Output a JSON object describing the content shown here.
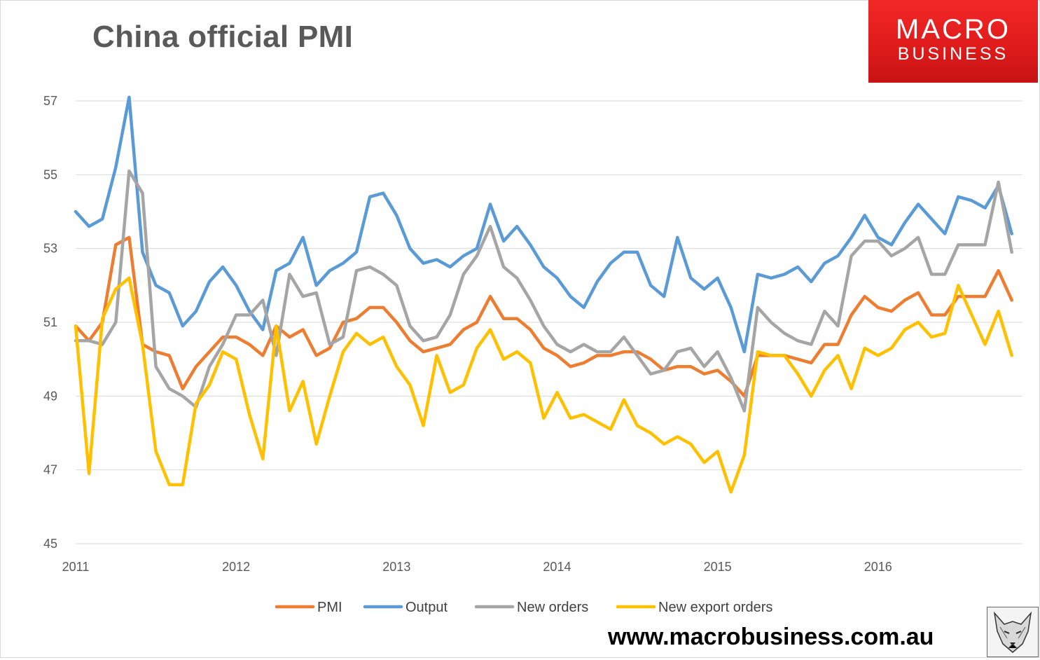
{
  "title": "China official PMI",
  "logo": {
    "line1": "MACRO",
    "line2": "BUSINESS"
  },
  "website": "www.macrobusiness.com.au",
  "chart_data": {
    "type": "line",
    "title": "China official PMI",
    "xlabel": "",
    "ylabel": "",
    "ylim": [
      45,
      57
    ],
    "xlim": [
      2011,
      2016.9
    ],
    "grid": true,
    "legend": "bottom",
    "y_ticks": [
      "45",
      "47",
      "49",
      "51",
      "53",
      "55",
      "57"
    ],
    "x_ticks": [
      "2011",
      "2012",
      "2013",
      "2014",
      "2015",
      "2016"
    ],
    "start": "2011-01",
    "frequency": "monthly",
    "series": [
      {
        "name": "PMI",
        "color": "#ED7D31",
        "values": [
          50.9,
          50.5,
          51.0,
          53.1,
          53.3,
          50.4,
          50.2,
          50.1,
          49.2,
          49.8,
          50.2,
          50.6,
          50.6,
          50.4,
          50.1,
          50.9,
          50.6,
          50.8,
          50.1,
          50.3,
          51.0,
          51.1,
          51.4,
          51.4,
          51.0,
          50.5,
          50.2,
          50.3,
          50.4,
          50.8,
          51.0,
          51.7,
          51.1,
          51.1,
          50.8,
          50.3,
          50.1,
          49.8,
          49.9,
          50.1,
          50.1,
          50.2,
          50.2,
          50.0,
          49.7,
          49.8,
          49.8,
          49.6,
          49.7,
          49.4,
          49.0,
          50.1,
          50.1,
          50.1,
          50.0,
          49.9,
          50.4,
          50.4,
          51.2,
          51.7,
          51.4,
          51.3,
          51.6,
          51.8,
          51.2,
          51.2,
          51.7,
          51.7,
          51.7,
          52.4,
          51.6
        ]
      },
      {
        "name": "Output",
        "color": "#5B9BD5",
        "values": [
          54.0,
          53.6,
          53.8,
          55.2,
          57.1,
          52.9,
          52.0,
          51.8,
          50.9,
          51.3,
          52.1,
          52.5,
          52.0,
          51.3,
          50.8,
          52.4,
          52.6,
          53.3,
          52.0,
          52.4,
          52.6,
          52.9,
          54.4,
          54.5,
          53.9,
          53.0,
          52.6,
          52.7,
          52.5,
          52.8,
          53.0,
          54.2,
          53.2,
          53.6,
          53.1,
          52.5,
          52.2,
          51.7,
          51.4,
          52.1,
          52.6,
          52.9,
          52.9,
          52.0,
          51.7,
          53.3,
          52.2,
          51.9,
          52.2,
          51.4,
          50.2,
          52.3,
          52.2,
          52.3,
          52.5,
          52.1,
          52.6,
          52.8,
          53.3,
          53.9,
          53.3,
          53.1,
          53.7,
          54.2,
          53.8,
          53.4,
          54.4,
          54.3,
          54.1,
          54.7,
          53.4
        ]
      },
      {
        "name": "New orders",
        "color": "#A5A5A5",
        "values": [
          50.5,
          50.5,
          50.4,
          51.0,
          55.1,
          54.5,
          49.8,
          49.2,
          49.0,
          48.7,
          49.8,
          50.4,
          51.2,
          51.2,
          51.6,
          50.1,
          52.3,
          51.7,
          51.8,
          50.4,
          50.6,
          52.4,
          52.5,
          52.3,
          52.0,
          50.9,
          50.5,
          50.6,
          51.2,
          52.3,
          52.8,
          53.6,
          52.5,
          52.2,
          51.6,
          50.9,
          50.4,
          50.2,
          50.4,
          50.2,
          50.2,
          50.6,
          50.1,
          49.6,
          49.7,
          50.2,
          50.3,
          49.8,
          50.2,
          49.5,
          48.6,
          51.4,
          51.0,
          50.7,
          50.5,
          50.4,
          51.3,
          50.9,
          52.8,
          53.2,
          53.2,
          52.8,
          53.0,
          53.3,
          52.3,
          52.3,
          53.1,
          53.1,
          53.1,
          54.8,
          52.9
        ]
      },
      {
        "name": "New export orders",
        "color": "#FFC000",
        "values": [
          50.9,
          46.9,
          51.1,
          51.9,
          52.2,
          50.4,
          47.5,
          46.6,
          46.6,
          48.8,
          49.3,
          50.2,
          50.0,
          48.5,
          47.3,
          50.9,
          48.6,
          49.4,
          47.7,
          49.0,
          50.2,
          50.7,
          50.4,
          50.6,
          49.8,
          49.3,
          48.2,
          50.1,
          49.1,
          49.3,
          50.3,
          50.8,
          50.0,
          50.2,
          49.9,
          48.4,
          49.1,
          48.4,
          48.5,
          48.3,
          48.1,
          48.9,
          48.2,
          48.0,
          47.7,
          47.9,
          47.7,
          47.2,
          47.5,
          46.4,
          47.4,
          50.2,
          50.1,
          50.1,
          49.6,
          49.0,
          49.7,
          50.1,
          49.2,
          50.3,
          50.1,
          50.3,
          50.8,
          51.0,
          50.6,
          50.7,
          52.0,
          51.2,
          50.4,
          51.3,
          50.1
        ]
      }
    ]
  }
}
